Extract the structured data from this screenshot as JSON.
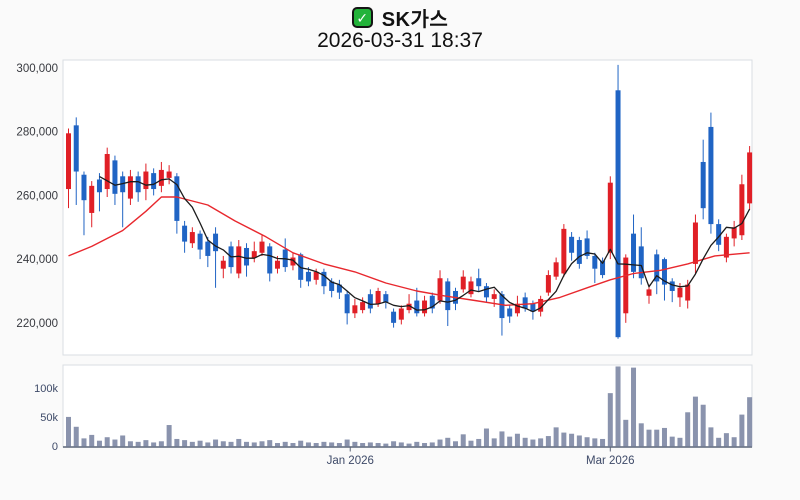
{
  "header": {
    "check_icon": "check-mark",
    "title": "SK가스",
    "datetime": "2026-03-31 18:37"
  },
  "chart_data": {
    "type": "candlestick",
    "title": "SK가스",
    "subtitle": "2026-03-31 18:37",
    "legend_position": "none",
    "grid": false,
    "price_axis": {
      "ticks": [
        {
          "label": "300,000",
          "value": 300000
        },
        {
          "label": "280,000",
          "value": 280000
        },
        {
          "label": "260,000",
          "value": 260000
        },
        {
          "label": "240,000",
          "value": 240000
        },
        {
          "label": "220,000",
          "value": 220000
        }
      ],
      "range": [
        213000,
        303000
      ]
    },
    "volume_axis": {
      "ticks": [
        {
          "label": "100k",
          "value": 100000
        },
        {
          "label": "50k",
          "value": 50000
        },
        {
          "label": "0",
          "value": 0
        }
      ],
      "range": [
        0,
        140000
      ]
    },
    "x_axis": {
      "ticks": [
        {
          "label": "Jan 2026",
          "index": 36.4
        },
        {
          "label": "Mar 2026",
          "index": 70
        }
      ]
    },
    "candles_format": [
      "open",
      "high",
      "low",
      "close",
      "volume"
    ],
    "candles": [
      [
        262000,
        281000,
        256000,
        279500,
        51000
      ],
      [
        282000,
        284500,
        257000,
        267500,
        34000
      ],
      [
        266500,
        267500,
        247500,
        258500,
        14000
      ],
      [
        254500,
        264500,
        250000,
        263000,
        20000
      ],
      [
        265000,
        267000,
        255000,
        261000,
        10000
      ],
      [
        262000,
        275000,
        259500,
        273000,
        16000
      ],
      [
        271000,
        272500,
        257000,
        260500,
        12000
      ],
      [
        266000,
        267500,
        250000,
        261000,
        19000
      ],
      [
        259000,
        268000,
        257000,
        266000,
        9000
      ],
      [
        266000,
        267500,
        258000,
        261000,
        8000
      ],
      [
        262000,
        270000,
        258500,
        267500,
        11000
      ],
      [
        267000,
        268500,
        260000,
        262000,
        7000
      ],
      [
        263000,
        270500,
        261000,
        268000,
        9000
      ],
      [
        265500,
        269500,
        263500,
        267500,
        37000
      ],
      [
        266000,
        267000,
        248000,
        252000,
        13000
      ],
      [
        250500,
        252000,
        242000,
        245500,
        11000
      ],
      [
        245000,
        250000,
        243500,
        248500,
        8000
      ],
      [
        248000,
        249000,
        240000,
        243000,
        10000
      ],
      [
        245500,
        247000,
        237500,
        241000,
        7000
      ],
      [
        248000,
        250000,
        231000,
        242500,
        12000
      ],
      [
        237000,
        241000,
        234000,
        239500,
        9000
      ],
      [
        244000,
        245500,
        235500,
        237500,
        8000
      ],
      [
        235500,
        246000,
        234000,
        244000,
        13000
      ],
      [
        243500,
        245000,
        234500,
        238000,
        8000
      ],
      [
        240500,
        245500,
        239000,
        242500,
        7000
      ],
      [
        242000,
        247500,
        241000,
        245500,
        9000
      ],
      [
        244000,
        245000,
        233000,
        235500,
        11000
      ],
      [
        237000,
        241000,
        235500,
        239500,
        6000
      ],
      [
        243000,
        246500,
        236000,
        237500,
        8000
      ],
      [
        238000,
        242000,
        236500,
        240500,
        6000
      ],
      [
        241500,
        242000,
        231000,
        233500,
        10000
      ],
      [
        236000,
        237500,
        231500,
        233000,
        7000
      ],
      [
        233500,
        237000,
        232000,
        236000,
        6000
      ],
      [
        236000,
        237000,
        229000,
        231500,
        8000
      ],
      [
        233000,
        234000,
        228000,
        230000,
        7000
      ],
      [
        232000,
        233500,
        227500,
        229500,
        6000
      ],
      [
        229000,
        230000,
        219500,
        223000,
        12000
      ],
      [
        223000,
        227500,
        221500,
        225500,
        8000
      ],
      [
        224000,
        228000,
        223000,
        226500,
        6000
      ],
      [
        229000,
        230500,
        223000,
        224500,
        7000
      ],
      [
        226000,
        231000,
        225000,
        230000,
        6000
      ],
      [
        229000,
        230000,
        224500,
        226500,
        5000
      ],
      [
        223500,
        224500,
        218500,
        220000,
        9000
      ],
      [
        221000,
        225500,
        219500,
        224500,
        7000
      ],
      [
        224000,
        229000,
        223000,
        226000,
        5000
      ],
      [
        227000,
        231000,
        222000,
        223000,
        8000
      ],
      [
        223000,
        228500,
        222000,
        227000,
        6000
      ],
      [
        228500,
        229500,
        223000,
        224500,
        7000
      ],
      [
        227000,
        236500,
        226000,
        234000,
        12000
      ],
      [
        233000,
        234000,
        219000,
        224000,
        15000
      ],
      [
        230000,
        231000,
        224000,
        226000,
        9000
      ],
      [
        230500,
        236500,
        229500,
        234500,
        21000
      ],
      [
        229000,
        234500,
        228000,
        233000,
        10000
      ],
      [
        234000,
        237000,
        230000,
        231500,
        13000
      ],
      [
        231500,
        232500,
        226500,
        228000,
        31000
      ],
      [
        227500,
        230500,
        225000,
        229000,
        14000
      ],
      [
        229000,
        230000,
        216000,
        221500,
        26000
      ],
      [
        224500,
        225500,
        220000,
        222000,
        17000
      ],
      [
        223000,
        228500,
        222000,
        226000,
        22000
      ],
      [
        228000,
        229500,
        223500,
        224500,
        15000
      ],
      [
        226000,
        227000,
        221000,
        223500,
        12000
      ],
      [
        223500,
        228500,
        222000,
        227500,
        14000
      ],
      [
        229500,
        236500,
        228500,
        235000,
        18000
      ],
      [
        234500,
        240500,
        233500,
        239000,
        33000
      ],
      [
        235500,
        251000,
        234500,
        249500,
        24000
      ],
      [
        247000,
        248500,
        239500,
        242000,
        22000
      ],
      [
        246000,
        247000,
        237000,
        238500,
        19000
      ],
      [
        246500,
        249000,
        240000,
        241000,
        16000
      ],
      [
        241000,
        242000,
        232500,
        237000,
        14000
      ],
      [
        239500,
        240500,
        234000,
        235000,
        13000
      ],
      [
        242000,
        266000,
        240000,
        264000,
        92000
      ],
      [
        293000,
        301000,
        215000,
        215500,
        138000
      ],
      [
        223000,
        241500,
        220000,
        240500,
        46000
      ],
      [
        248000,
        254000,
        234000,
        236000,
        136000
      ],
      [
        244000,
        250000,
        232000,
        234000,
        40000
      ],
      [
        228500,
        232000,
        226000,
        230500,
        29000
      ],
      [
        241500,
        243000,
        229000,
        233000,
        29000
      ],
      [
        240000,
        240500,
        227000,
        232000,
        32000
      ],
      [
        233000,
        234000,
        226500,
        230000,
        17000
      ],
      [
        228000,
        232500,
        225000,
        231000,
        15000
      ],
      [
        227000,
        233500,
        224500,
        232000,
        59000
      ],
      [
        238500,
        254000,
        235500,
        251500,
        86000
      ],
      [
        270500,
        277500,
        252500,
        256000,
        72000
      ],
      [
        281500,
        286000,
        248000,
        251000,
        33000
      ],
      [
        251000,
        252500,
        242500,
        244500,
        15000
      ],
      [
        240500,
        248000,
        239000,
        247000,
        23000
      ],
      [
        246500,
        252000,
        244000,
        250000,
        16000
      ],
      [
        247500,
        266500,
        246000,
        263500,
        55000
      ],
      [
        257500,
        275500,
        255500,
        273500,
        85000
      ]
    ],
    "ma_short": {
      "name": "short-term moving average",
      "period": 5,
      "color": "#1c1c1c"
    },
    "ma_long": {
      "name": "long-term moving average",
      "color": "#e8282e",
      "points": [
        [
          0,
          241000
        ],
        [
          3,
          244000
        ],
        [
          7,
          249000
        ],
        [
          10,
          255000
        ],
        [
          12,
          259500
        ],
        [
          14,
          259500
        ],
        [
          18,
          257000
        ],
        [
          21.5,
          252000
        ],
        [
          25.5,
          247000
        ],
        [
          29,
          242000
        ],
        [
          33,
          238500
        ],
        [
          37,
          236000
        ],
        [
          41,
          232500
        ],
        [
          45,
          230000
        ],
        [
          48.5,
          228500
        ],
        [
          52.5,
          227000
        ],
        [
          56.5,
          225500
        ],
        [
          60,
          226000
        ],
        [
          63.5,
          228000
        ],
        [
          67,
          231000
        ],
        [
          70,
          233500
        ],
        [
          73,
          235500
        ],
        [
          76.5,
          236500
        ],
        [
          80,
          238500
        ],
        [
          83.5,
          241000
        ],
        [
          88,
          242000
        ]
      ]
    },
    "colors": {
      "up": "#e01f26",
      "down": "#2064c4",
      "volume_bar": "#8a93ad",
      "check_green": "#23b33a",
      "axis_text": "#37393f",
      "axis_text_slate": "#3e4a68",
      "panel_border": "#d9dde3",
      "volume_baseline": "#5b6577",
      "plot_bg": "#ffffff"
    }
  }
}
